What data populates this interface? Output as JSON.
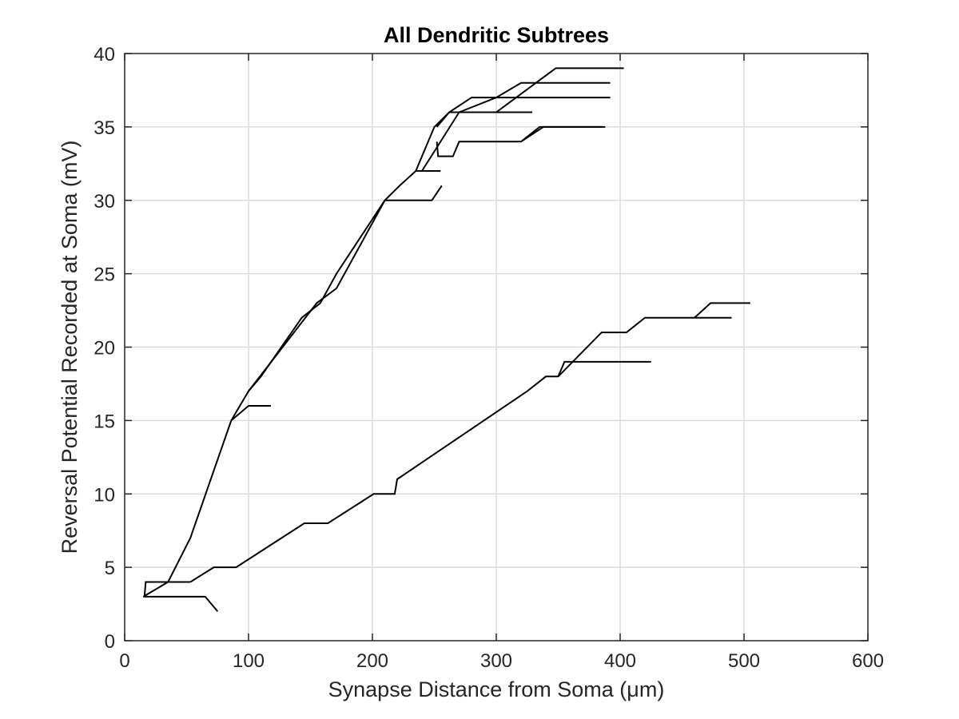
{
  "chart_data": {
    "type": "line",
    "title": "All Dendritic Subtrees",
    "xlabel": "Synapse Distance from Soma (μm)",
    "ylabel": "Reversal Potential Recorded at Soma (mV)",
    "xlim": [
      0,
      600
    ],
    "ylim": [
      0,
      40
    ],
    "xticks": [
      0,
      100,
      200,
      300,
      400,
      500,
      600
    ],
    "yticks": [
      0,
      5,
      10,
      15,
      20,
      25,
      30,
      35,
      40
    ],
    "grid": true,
    "legend": "none",
    "color": "#000000",
    "series": [
      {
        "x": [
          15,
          65,
          75
        ],
        "y": [
          3,
          3,
          2
        ]
      },
      {
        "x": [
          15,
          35,
          53,
          86
        ],
        "y": [
          3,
          4,
          7,
          15
        ]
      },
      {
        "x": [
          86,
          100,
          118
        ],
        "y": [
          15,
          16,
          16
        ]
      },
      {
        "x": [
          86,
          100,
          110,
          143,
          158,
          171,
          210,
          222,
          235,
          250,
          262,
          280,
          330,
          392
        ],
        "y": [
          15,
          17,
          18,
          22,
          23,
          25,
          30,
          31,
          32,
          35,
          36,
          37,
          37,
          37
        ]
      },
      {
        "x": [
          100,
          155,
          171,
          184,
          210,
          248,
          256
        ],
        "y": [
          17,
          23,
          24,
          26,
          30,
          30,
          31
        ]
      },
      {
        "x": [
          235,
          255
        ],
        "y": [
          32,
          32
        ]
      },
      {
        "x": [
          252,
          253,
          265,
          270,
          320,
          335,
          385
        ],
        "y": [
          34,
          33,
          33,
          34,
          34,
          35,
          35
        ]
      },
      {
        "x": [
          252,
          262,
          329
        ],
        "y": [
          35,
          36,
          36
        ]
      },
      {
        "x": [
          240,
          270,
          300,
          320,
          392
        ],
        "y": [
          32,
          36,
          37,
          38,
          38
        ]
      },
      {
        "x": [
          300,
          348,
          403
        ],
        "y": [
          36,
          39,
          39
        ]
      },
      {
        "x": [
          320,
          338,
          388
        ],
        "y": [
          34,
          35,
          35
        ]
      },
      {
        "x": [
          16,
          17,
          53
        ],
        "y": [
          3,
          4,
          4
        ]
      },
      {
        "x": [
          53,
          72,
          90,
          145,
          164,
          201,
          218,
          220,
          325,
          340,
          350,
          385,
          405,
          420,
          490
        ],
        "y": [
          4,
          5,
          5,
          8,
          8,
          10,
          10,
          11,
          17,
          18,
          18,
          21,
          21,
          22,
          22
        ]
      },
      {
        "x": [
          350,
          355,
          425
        ],
        "y": [
          18,
          19,
          19
        ]
      },
      {
        "x": [
          460,
          473,
          505
        ],
        "y": [
          22,
          23,
          23
        ]
      }
    ]
  }
}
